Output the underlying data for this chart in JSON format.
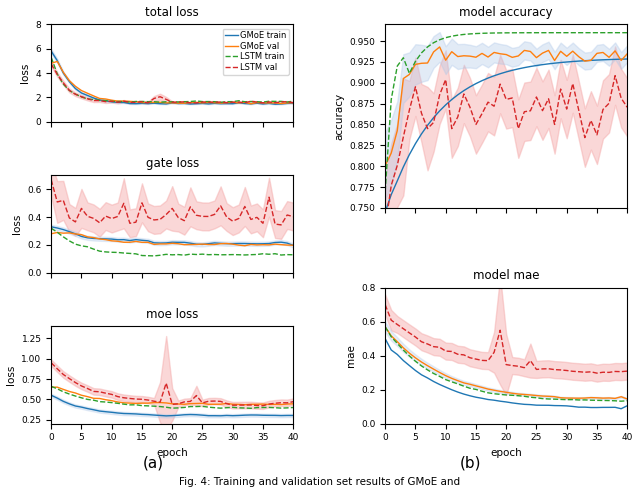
{
  "colors": {
    "gmoe_train": "#1f77b4",
    "gmoe_val": "#ff7f0e",
    "lstm_train": "#2ca02c",
    "lstm_val": "#d62728",
    "fill_gmoe": "#aec7e8",
    "fill_lstm": "#f4a7a7"
  },
  "n_epochs": 41,
  "legend_labels": [
    "GMoE train",
    "GMoE val",
    "LSTM train",
    "LSTM val"
  ],
  "xlabel": "epoch",
  "titles_left": [
    "total loss",
    "gate loss",
    "moe loss"
  ],
  "titles_right": [
    "model accuracy",
    "model mae"
  ],
  "ylabels_left": [
    "loss",
    "loss",
    "loss"
  ],
  "ylabels_right": [
    "accuracy",
    "mae"
  ],
  "caption_a": "(a)",
  "caption_b": "(b)",
  "total_loss_ylim": [
    0,
    8
  ],
  "gate_loss_ylim": [
    0.0,
    0.7
  ],
  "moe_loss_ylim": [
    0.2,
    1.4
  ],
  "acc_ylim": [
    0.75,
    0.97
  ],
  "mae_ylim": [
    0.0,
    0.8
  ]
}
